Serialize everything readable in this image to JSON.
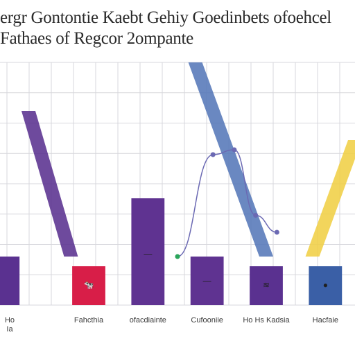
{
  "title_line_1": "ergr Gontontie Kaebt Gehiy Goedinbets ofoehcel",
  "title_line_2": "Fathaes of Regcor 2ompante",
  "chart_data": {
    "type": "bar",
    "title": "ergr Gontontie Kaebt Gehiy Goedinbets ofoehcel Fathaes of Regcor 2ompante",
    "xlabel": "",
    "ylabel": "",
    "categories": [
      "Ho",
      "Fahcthia",
      "ofacdiainte",
      "Cufooniie",
      "Ho Hs Kadsia",
      "Hacfaie"
    ],
    "category_labels_line2": [
      "Ia",
      "",
      "",
      "",
      "",
      ""
    ],
    "ylim": [
      0,
      100
    ],
    "grid": true,
    "series": [
      {
        "values": [
          20,
          16,
          44,
          20,
          16,
          16
        ],
        "colors": [
          "#5a3190",
          "#d81e48",
          "#5f3391",
          "#5f3391",
          "#5a3190",
          "#3a5fa6"
        ]
      }
    ],
    "bar_icons": [
      "",
      "🐄",
      "—",
      "—",
      "≋",
      "●"
    ],
    "overlay_lines": [
      {
        "name": "",
        "color": "#5a3190",
        "points": [
          [
            0.08,
            80
          ],
          [
            0.2,
            20
          ]
        ]
      },
      {
        "name": "",
        "color": "#5577b8",
        "points": [
          [
            0.55,
            100
          ],
          [
            0.75,
            20
          ]
        ]
      },
      {
        "name": "",
        "color": "#f0cf45",
        "points": [
          [
            0.88,
            20
          ],
          [
            1.0,
            68
          ]
        ]
      }
    ],
    "curve_points": [
      [
        0.5,
        20
      ],
      [
        0.6,
        62
      ],
      [
        0.66,
        64
      ],
      [
        0.72,
        37
      ],
      [
        0.78,
        30
      ]
    ],
    "curve_color": "#6b69b3",
    "line_colors": [
      "#5a3190",
      "#5577b8",
      "#f0cf45",
      "#6b69b3"
    ]
  }
}
